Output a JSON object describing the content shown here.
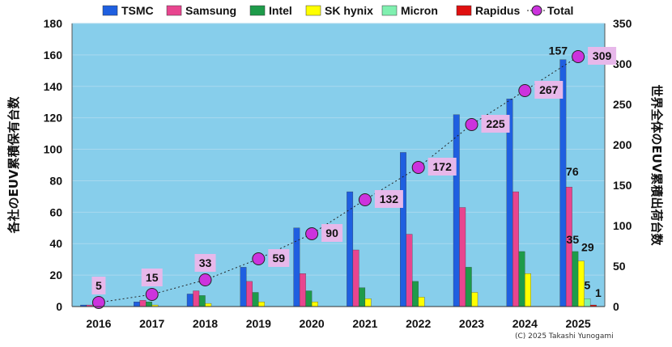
{
  "chart_data": {
    "type": "bar",
    "categories": [
      "2016",
      "2017",
      "2018",
      "2019",
      "2020",
      "2021",
      "2022",
      "2023",
      "2024",
      "2025"
    ],
    "series": [
      {
        "name": "TSMC",
        "color": "#1f5fe0",
        "values": [
          1,
          3,
          8,
          25,
          50,
          73,
          98,
          122,
          132,
          157
        ]
      },
      {
        "name": "Samsung",
        "color": "#e8458f",
        "values": [
          1,
          4,
          10,
          16,
          21,
          36,
          46,
          63,
          73,
          76
        ]
      },
      {
        "name": "Intel",
        "color": "#1e9b4a",
        "values": [
          0,
          3,
          7,
          9,
          10,
          12,
          16,
          25,
          35,
          35
        ]
      },
      {
        "name": "SK hynix",
        "color": "#ffff00",
        "values": [
          0,
          1,
          2,
          3,
          3,
          5,
          6,
          9,
          21,
          29
        ]
      },
      {
        "name": "Micron",
        "color": "#80f0b0",
        "values": [
          0,
          0,
          0,
          0,
          0,
          0,
          0,
          0,
          0,
          5
        ]
      },
      {
        "name": "Rapidus",
        "color": "#e01010",
        "values": [
          0,
          0,
          0,
          0,
          0,
          0,
          0,
          0,
          0,
          1
        ]
      }
    ],
    "line_series": {
      "name": "Total",
      "color": "#cc33dd",
      "values": [
        5,
        15,
        33,
        59,
        90,
        132,
        172,
        225,
        267,
        309
      ]
    },
    "ylabel_left": "各社のEUV累積保有台数",
    "ylabel_right": "世界全体のEUV累積出荷台数",
    "ylim_left": [
      0,
      180
    ],
    "ylim_right": [
      0,
      350
    ],
    "yticks_left": [
      "0",
      "20",
      "40",
      "60",
      "80",
      "100",
      "120",
      "140",
      "160",
      "180"
    ],
    "yticks_right": [
      "0",
      "50",
      "100",
      "150",
      "200",
      "250",
      "300",
      "350"
    ],
    "bar_labels_2025": [
      "157",
      "76",
      "35",
      "29",
      "5",
      "1"
    ],
    "legend_position": "top",
    "credit": "(C) 2025 Takashi Yunogami",
    "plot_background": "#87ceeb"
  }
}
